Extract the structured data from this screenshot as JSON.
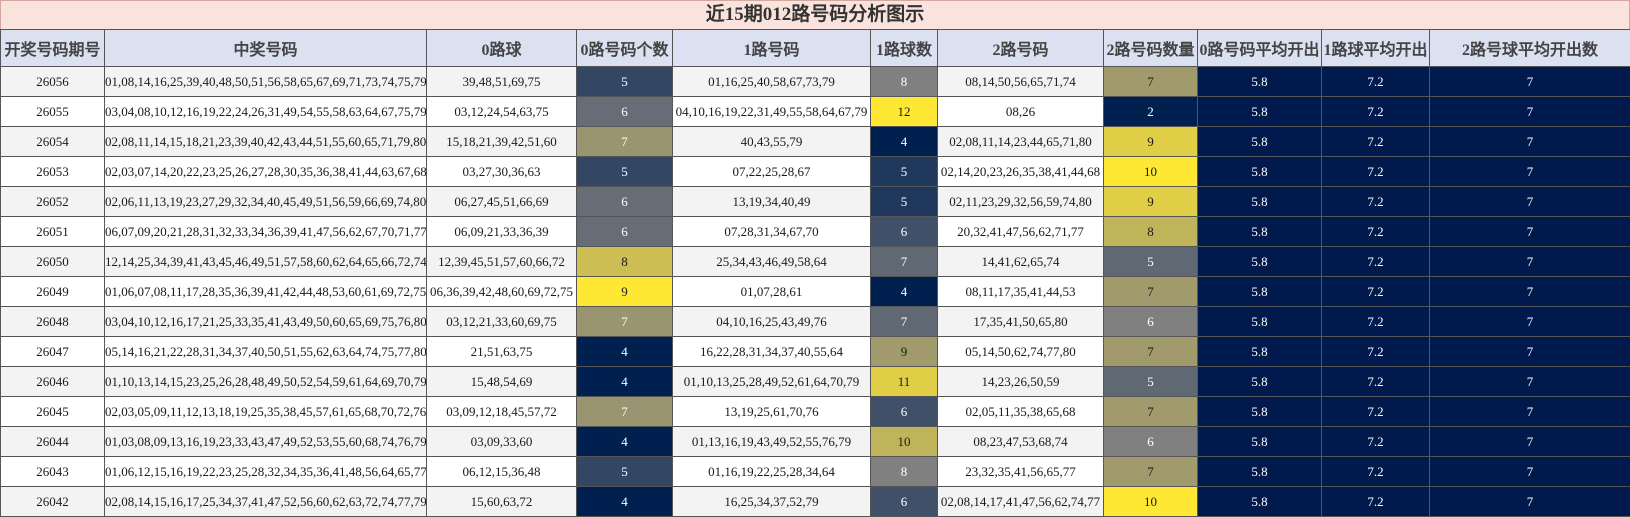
{
  "title": "近15期012路号码分析图示",
  "headers": [
    "开奖号码期号",
    "中奖号码",
    "0路球",
    "0路号码个数",
    "1路号码",
    "1路球数",
    "2路号码",
    "2路号码数量",
    "0路号码平均开出",
    "1路球平均开出",
    "2路号球平均开出数"
  ],
  "rows": [
    {
      "period": "26056",
      "numbers": "01,08,14,16,25,39,40,48,50,51,56,58,65,67,69,71,73,74,75,79",
      "r0": "39,48,51,69,75",
      "c0": "5",
      "r1": "01,16,25,40,58,67,73,79",
      "c1": "8",
      "r2": "08,14,50,56,65,71,74",
      "c2": "7",
      "a0": "5.8",
      "a1": "7.2",
      "a2": "7"
    },
    {
      "period": "26055",
      "numbers": "03,04,08,10,12,16,19,22,24,26,31,49,54,55,58,63,64,67,75,79",
      "r0": "03,12,24,54,63,75",
      "c0": "6",
      "r1": "04,10,16,19,22,31,49,55,58,64,67,79",
      "c1": "12",
      "r2": "08,26",
      "c2": "2",
      "a0": "5.8",
      "a1": "7.2",
      "a2": "7"
    },
    {
      "period": "26054",
      "numbers": "02,08,11,14,15,18,21,23,39,40,42,43,44,51,55,60,65,71,79,80",
      "r0": "15,18,21,39,42,51,60",
      "c0": "7",
      "r1": "40,43,55,79",
      "c1": "4",
      "r2": "02,08,11,14,23,44,65,71,80",
      "c2": "9",
      "a0": "5.8",
      "a1": "7.2",
      "a2": "7"
    },
    {
      "period": "26053",
      "numbers": "02,03,07,14,20,22,23,25,26,27,28,30,35,36,38,41,44,63,67,68",
      "r0": "03,27,30,36,63",
      "c0": "5",
      "r1": "07,22,25,28,67",
      "c1": "5",
      "r2": "02,14,20,23,26,35,38,41,44,68",
      "c2": "10",
      "a0": "5.8",
      "a1": "7.2",
      "a2": "7"
    },
    {
      "period": "26052",
      "numbers": "02,06,11,13,19,23,27,29,32,34,40,45,49,51,56,59,66,69,74,80",
      "r0": "06,27,45,51,66,69",
      "c0": "6",
      "r1": "13,19,34,40,49",
      "c1": "5",
      "r2": "02,11,23,29,32,56,59,74,80",
      "c2": "9",
      "a0": "5.8",
      "a1": "7.2",
      "a2": "7"
    },
    {
      "period": "26051",
      "numbers": "06,07,09,20,21,28,31,32,33,34,36,39,41,47,56,62,67,70,71,77",
      "r0": "06,09,21,33,36,39",
      "c0": "6",
      "r1": "07,28,31,34,67,70",
      "c1": "6",
      "r2": "20,32,41,47,56,62,71,77",
      "c2": "8",
      "a0": "5.8",
      "a1": "7.2",
      "a2": "7"
    },
    {
      "period": "26050",
      "numbers": "12,14,25,34,39,41,43,45,46,49,51,57,58,60,62,64,65,66,72,74",
      "r0": "12,39,45,51,57,60,66,72",
      "c0": "8",
      "r1": "25,34,43,46,49,58,64",
      "c1": "7",
      "r2": "14,41,62,65,74",
      "c2": "5",
      "a0": "5.8",
      "a1": "7.2",
      "a2": "7"
    },
    {
      "period": "26049",
      "numbers": "01,06,07,08,11,17,28,35,36,39,41,42,44,48,53,60,61,69,72,75",
      "r0": "06,36,39,42,48,60,69,72,75",
      "c0": "9",
      "r1": "01,07,28,61",
      "c1": "4",
      "r2": "08,11,17,35,41,44,53",
      "c2": "7",
      "a0": "5.8",
      "a1": "7.2",
      "a2": "7"
    },
    {
      "period": "26048",
      "numbers": "03,04,10,12,16,17,21,25,33,35,41,43,49,50,60,65,69,75,76,80",
      "r0": "03,12,21,33,60,69,75",
      "c0": "7",
      "r1": "04,10,16,25,43,49,76",
      "c1": "7",
      "r2": "17,35,41,50,65,80",
      "c2": "6",
      "a0": "5.8",
      "a1": "7.2",
      "a2": "7"
    },
    {
      "period": "26047",
      "numbers": "05,14,16,21,22,28,31,34,37,40,50,51,55,62,63,64,74,75,77,80",
      "r0": "21,51,63,75",
      "c0": "4",
      "r1": "16,22,28,31,34,37,40,55,64",
      "c1": "9",
      "r2": "05,14,50,62,74,77,80",
      "c2": "7",
      "a0": "5.8",
      "a1": "7.2",
      "a2": "7"
    },
    {
      "period": "26046",
      "numbers": "01,10,13,14,15,23,25,26,28,48,49,50,52,54,59,61,64,69,70,79",
      "r0": "15,48,54,69",
      "c0": "4",
      "r1": "01,10,13,25,28,49,52,61,64,70,79",
      "c1": "11",
      "r2": "14,23,26,50,59",
      "c2": "5",
      "a0": "5.8",
      "a1": "7.2",
      "a2": "7"
    },
    {
      "period": "26045",
      "numbers": "02,03,05,09,11,12,13,18,19,25,35,38,45,57,61,65,68,70,72,76",
      "r0": "03,09,12,18,45,57,72",
      "c0": "7",
      "r1": "13,19,25,61,70,76",
      "c1": "6",
      "r2": "02,05,11,35,38,65,68",
      "c2": "7",
      "a0": "5.8",
      "a1": "7.2",
      "a2": "7"
    },
    {
      "period": "26044",
      "numbers": "01,03,08,09,13,16,19,23,33,43,47,49,52,53,55,60,68,74,76,79",
      "r0": "03,09,33,60",
      "c0": "4",
      "r1": "01,13,16,19,43,49,52,55,76,79",
      "c1": "10",
      "r2": "08,23,47,53,68,74",
      "c2": "6",
      "a0": "5.8",
      "a1": "7.2",
      "a2": "7"
    },
    {
      "period": "26043",
      "numbers": "01,06,12,15,16,19,22,23,25,28,32,34,35,36,41,48,56,64,65,77",
      "r0": "06,12,15,36,48",
      "c0": "5",
      "r1": "01,16,19,22,25,28,34,64",
      "c1": "8",
      "r2": "23,32,35,41,56,65,77",
      "c2": "7",
      "a0": "5.8",
      "a1": "7.2",
      "a2": "7"
    },
    {
      "period": "26042",
      "numbers": "02,08,14,15,16,17,25,34,37,41,47,52,56,60,62,63,72,74,77,79",
      "r0": "15,60,63,72",
      "c0": "4",
      "r1": "16,25,34,37,52,79",
      "c1": "6",
      "r2": "02,08,14,17,41,47,56,62,74,77",
      "c2": "10",
      "a0": "5.8",
      "a1": "7.2",
      "a2": "7"
    }
  ]
}
